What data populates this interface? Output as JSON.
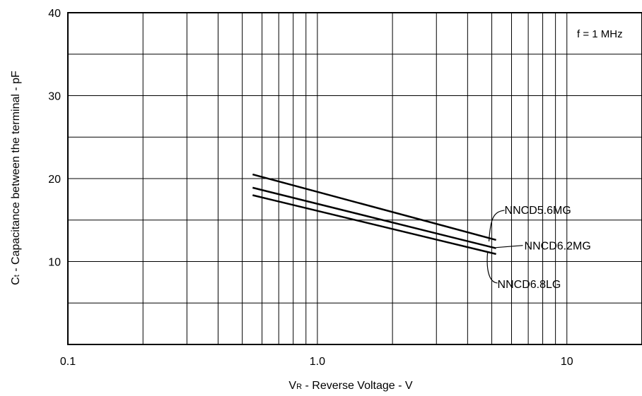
{
  "chart_data": {
    "type": "line",
    "title": "",
    "annotation": "f = 1 MHz",
    "xlabel": {
      "main": "V",
      "sub": "R",
      "rest": " - Reverse Voltage - V"
    },
    "ylabel": {
      "main": "C",
      "sub": "t",
      "rest": " - Capacitance between the terminal - pF"
    },
    "x_scale": "log",
    "xlim": [
      0.1,
      20
    ],
    "ylim": [
      0,
      40
    ],
    "x_tick_labels": [
      {
        "value": 0.1,
        "label": "0.1"
      },
      {
        "value": 1,
        "label": "1.0"
      },
      {
        "value": 10,
        "label": "10"
      }
    ],
    "y_tick_labels": [
      {
        "value": 10,
        "label": "10"
      },
      {
        "value": 20,
        "label": "20"
      },
      {
        "value": 30,
        "label": "30"
      },
      {
        "value": 40,
        "label": "40"
      }
    ],
    "grid": true,
    "series": [
      {
        "name": "NNCD5.6MG",
        "x": [
          0.55,
          5.2
        ],
        "y": [
          20.5,
          12.6
        ]
      },
      {
        "name": "NNCD6.2MG",
        "x": [
          0.55,
          5.2
        ],
        "y": [
          18.9,
          11.6
        ]
      },
      {
        "name": "NNCD6.8LG",
        "x": [
          0.55,
          5.2
        ],
        "y": [
          18.0,
          10.9
        ]
      }
    ]
  }
}
